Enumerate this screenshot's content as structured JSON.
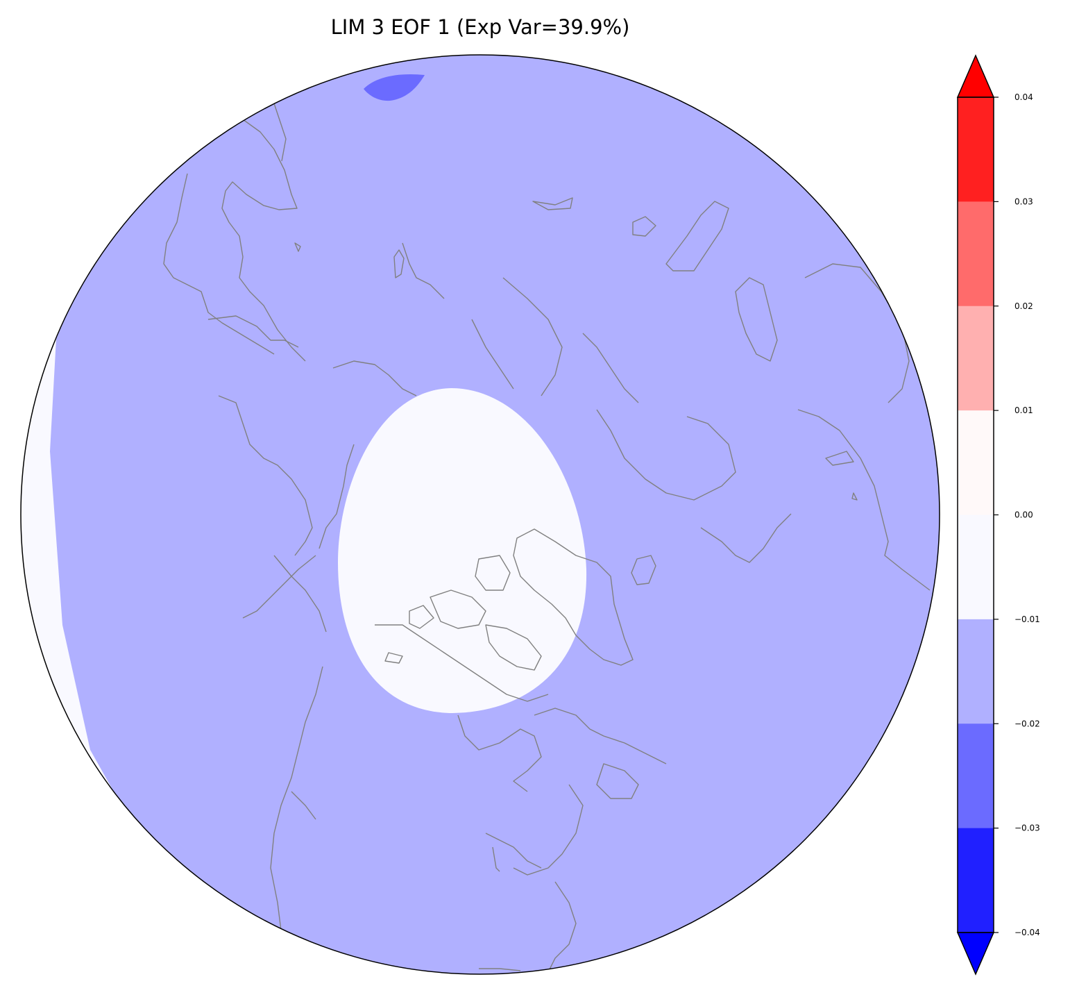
{
  "title": "LIM 3 EOF 1 (Exp Var=39.9%)",
  "map": {
    "projection": "north-polar-stereographic",
    "coastline_color": "#808080",
    "field_colors": {
      "strong_negative": "#6b6bff",
      "moderate_negative": "#b0b0ff",
      "near_zero": "#f9f9ff"
    }
  },
  "colorbar": {
    "ticks": [
      "0.04",
      "0.03",
      "0.02",
      "0.01",
      "0.00",
      "−0.01",
      "−0.02",
      "−0.03",
      "−0.04"
    ],
    "bins_top_to_bottom": [
      "#ff2020",
      "#ff6b6b",
      "#ffb0b0",
      "#fff9f9",
      "#f9f9ff",
      "#b0b0ff",
      "#6b6bff",
      "#2020ff"
    ],
    "extend_max_color": "#ff0000",
    "extend_min_color": "#0000ff"
  }
}
